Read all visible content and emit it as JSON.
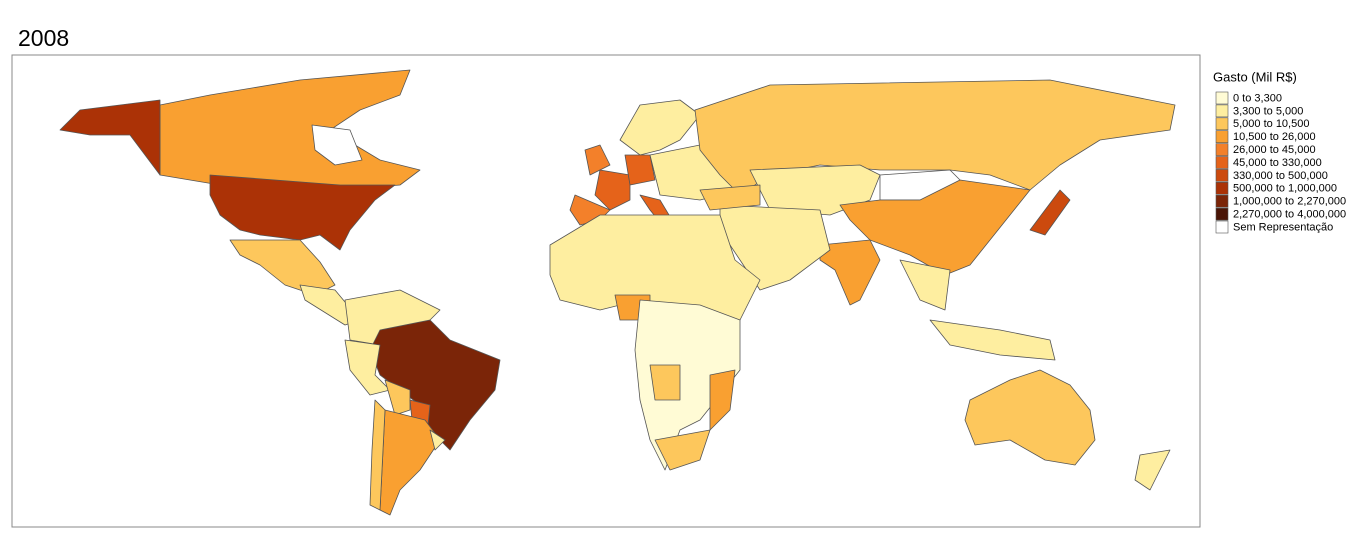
{
  "title": "2008",
  "legend": {
    "title": "Gasto (Mil R$)",
    "items": [
      {
        "label": "0 to 3,300",
        "color": "#fffbd5"
      },
      {
        "label": "3,300 to 5,000",
        "color": "#feeea0"
      },
      {
        "label": "5,000 to 10,500",
        "color": "#fdc75c"
      },
      {
        "label": "10,500 to 26,000",
        "color": "#f9a031"
      },
      {
        "label": "26,000 to 45,000",
        "color": "#f3802a"
      },
      {
        "label": "45,000 to 330,000",
        "color": "#e5631a"
      },
      {
        "label": "330,000 to 500,000",
        "color": "#cc4a0e"
      },
      {
        "label": "500,000 to 1,000,000",
        "color": "#ab3206"
      },
      {
        "label": "1,000,000 to 2,270,000",
        "color": "#7b2508"
      },
      {
        "label": "2,270,000 to 4,000,000",
        "color": "#4a1506"
      },
      {
        "label": "Sem Representação",
        "color": "#ffffff"
      }
    ]
  }
}
